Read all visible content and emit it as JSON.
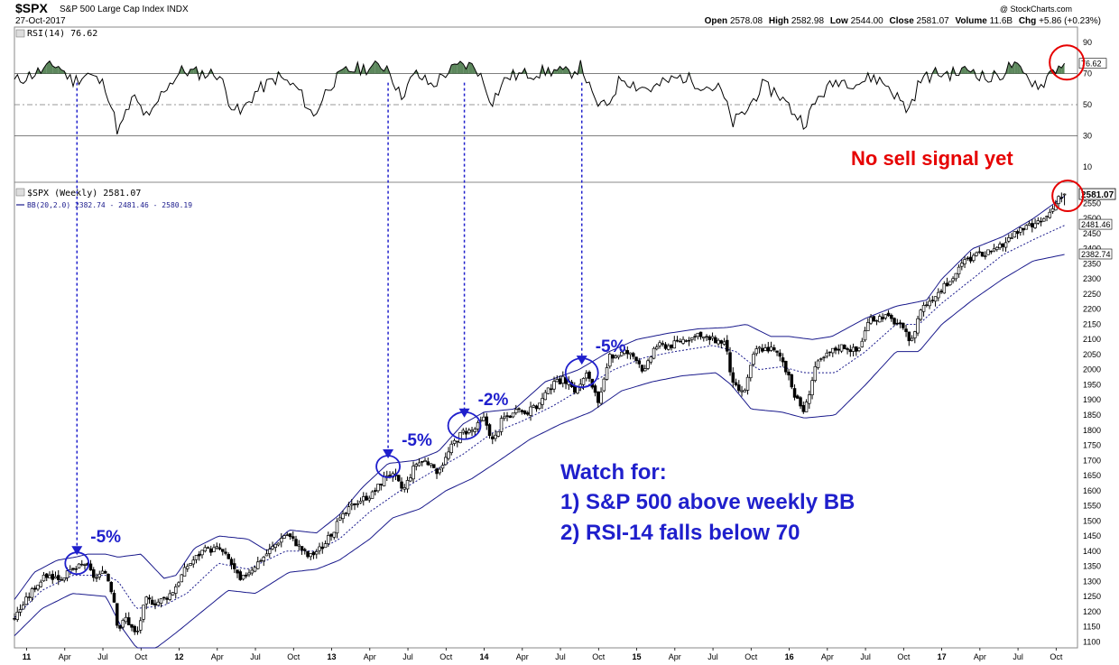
{
  "header": {
    "symbol": "$SPX",
    "name": "S&P 500 Large Cap Index INDX",
    "date": "27-Oct-2017",
    "open_label": "Open",
    "open": "2578.08",
    "high_label": "High",
    "high": "2582.98",
    "low_label": "Low",
    "low": "2544.00",
    "close_label": "Close",
    "close": "2581.07",
    "volume_label": "Volume",
    "volume": "11.6B",
    "chg_label": "Chg",
    "chg": "+5.86 (+0.23%)",
    "watermark": "@ StockCharts.com"
  },
  "rsi_panel": {
    "legend": "RSI(14) 76.62",
    "last_value_tag": "76.62",
    "ticks": [
      90,
      70,
      50,
      30,
      10
    ],
    "overbought": 70,
    "oversold": 30,
    "midline": 50,
    "ylim": [
      0,
      100
    ]
  },
  "price_panel": {
    "legend_1": "$SPX (Weekly) 2581.07",
    "legend_2": "BB(20,2.0) 2382.74 - 2481.46 - 2580.19",
    "last_value_tag": "2581.07",
    "mid_band_tag": "2481.46",
    "lower_band_tag": "2382.74",
    "ticks": [
      1100,
      1150,
      1200,
      1250,
      1300,
      1350,
      1400,
      1450,
      1500,
      1550,
      1600,
      1650,
      1700,
      1750,
      1800,
      1850,
      1900,
      1950,
      2000,
      2050,
      2100,
      2150,
      2200,
      2250,
      2300,
      2350,
      2400,
      2450,
      2500,
      2550
    ],
    "ylim": [
      1080,
      2620
    ]
  },
  "x_axis": {
    "labels": [
      {
        "t": 0.0,
        "text": "11",
        "year": true
      },
      {
        "t": 0.25,
        "text": "Apr"
      },
      {
        "t": 0.5,
        "text": "Jul"
      },
      {
        "t": 0.75,
        "text": "Oct"
      },
      {
        "t": 1.0,
        "text": "12",
        "year": true
      },
      {
        "t": 1.25,
        "text": "Apr"
      },
      {
        "t": 1.5,
        "text": "Jul"
      },
      {
        "t": 1.75,
        "text": "Oct"
      },
      {
        "t": 2.0,
        "text": "13",
        "year": true
      },
      {
        "t": 2.25,
        "text": "Apr"
      },
      {
        "t": 2.5,
        "text": "Jul"
      },
      {
        "t": 2.75,
        "text": "Oct"
      },
      {
        "t": 3.0,
        "text": "14",
        "year": true
      },
      {
        "t": 3.25,
        "text": "Apr"
      },
      {
        "t": 3.5,
        "text": "Jul"
      },
      {
        "t": 3.75,
        "text": "Oct"
      },
      {
        "t": 4.0,
        "text": "15",
        "year": true
      },
      {
        "t": 4.25,
        "text": "Apr"
      },
      {
        "t": 4.5,
        "text": "Jul"
      },
      {
        "t": 4.75,
        "text": "Oct"
      },
      {
        "t": 5.0,
        "text": "16",
        "year": true
      },
      {
        "t": 5.25,
        "text": "Apr"
      },
      {
        "t": 5.5,
        "text": "Jul"
      },
      {
        "t": 5.75,
        "text": "Oct"
      },
      {
        "t": 6.0,
        "text": "17",
        "year": true
      },
      {
        "t": 6.25,
        "text": "Apr"
      },
      {
        "t": 6.5,
        "text": "Jul"
      },
      {
        "t": 6.75,
        "text": "Oct"
      }
    ]
  },
  "chart_data": {
    "type": "line",
    "x_unit": "years since Jan 2011",
    "xlim": [
      -0.08,
      6.89
    ],
    "price_keypoints": [
      [
        -0.08,
        1180
      ],
      [
        0.05,
        1280
      ],
      [
        0.13,
        1320
      ],
      [
        0.22,
        1310
      ],
      [
        0.3,
        1335
      ],
      [
        0.38,
        1360
      ],
      [
        0.45,
        1310
      ],
      [
        0.52,
        1330
      ],
      [
        0.57,
        1250
      ],
      [
        0.6,
        1140
      ],
      [
        0.65,
        1180
      ],
      [
        0.72,
        1120
      ],
      [
        0.78,
        1240
      ],
      [
        0.85,
        1230
      ],
      [
        0.92,
        1250
      ],
      [
        0.96,
        1270
      ],
      [
        1.05,
        1350
      ],
      [
        1.15,
        1400
      ],
      [
        1.26,
        1410
      ],
      [
        1.33,
        1370
      ],
      [
        1.4,
        1300
      ],
      [
        1.45,
        1330
      ],
      [
        1.55,
        1380
      ],
      [
        1.7,
        1460
      ],
      [
        1.78,
        1420
      ],
      [
        1.85,
        1380
      ],
      [
        1.95,
        1420
      ],
      [
        2.05,
        1500
      ],
      [
        2.15,
        1560
      ],
      [
        2.27,
        1590
      ],
      [
        2.37,
        1660
      ],
      [
        2.42,
        1640
      ],
      [
        2.47,
        1600
      ],
      [
        2.55,
        1690
      ],
      [
        2.62,
        1700
      ],
      [
        2.68,
        1660
      ],
      [
        2.74,
        1700
      ],
      [
        2.8,
        1760
      ],
      [
        2.86,
        1795
      ],
      [
        2.93,
        1800
      ],
      [
        3.0,
        1840
      ],
      [
        3.06,
        1760
      ],
      [
        3.12,
        1840
      ],
      [
        3.22,
        1860
      ],
      [
        3.28,
        1860
      ],
      [
        3.35,
        1880
      ],
      [
        3.45,
        1950
      ],
      [
        3.52,
        1970
      ],
      [
        3.6,
        1930
      ],
      [
        3.68,
        1990
      ],
      [
        3.75,
        1880
      ],
      [
        3.82,
        2040
      ],
      [
        3.92,
        2060
      ],
      [
        4.0,
        2040
      ],
      [
        4.05,
        1990
      ],
      [
        4.12,
        2080
      ],
      [
        4.22,
        2080
      ],
      [
        4.3,
        2100
      ],
      [
        4.4,
        2110
      ],
      [
        4.5,
        2100
      ],
      [
        4.58,
        2090
      ],
      [
        4.63,
        1950
      ],
      [
        4.7,
        1920
      ],
      [
        4.78,
        2070
      ],
      [
        4.88,
        2070
      ],
      [
        4.95,
        2040
      ],
      [
        5.04,
        1910
      ],
      [
        5.1,
        1860
      ],
      [
        5.17,
        2010
      ],
      [
        5.27,
        2060
      ],
      [
        5.35,
        2080
      ],
      [
        5.45,
        2060
      ],
      [
        5.52,
        2160
      ],
      [
        5.62,
        2180
      ],
      [
        5.72,
        2150
      ],
      [
        5.8,
        2090
      ],
      [
        5.86,
        2200
      ],
      [
        5.96,
        2250
      ],
      [
        6.05,
        2290
      ],
      [
        6.15,
        2360
      ],
      [
        6.24,
        2380
      ],
      [
        6.35,
        2390
      ],
      [
        6.45,
        2440
      ],
      [
        6.55,
        2470
      ],
      [
        6.62,
        2480
      ],
      [
        6.68,
        2500
      ],
      [
        6.76,
        2560
      ],
      [
        6.82,
        2581
      ]
    ],
    "rsi_keypoints": [
      [
        -0.08,
        65
      ],
      [
        0.1,
        72
      ],
      [
        0.2,
        76
      ],
      [
        0.3,
        65
      ],
      [
        0.4,
        70
      ],
      [
        0.52,
        62
      ],
      [
        0.6,
        32
      ],
      [
        0.7,
        55
      ],
      [
        0.8,
        40
      ],
      [
        0.9,
        60
      ],
      [
        1.02,
        72
      ],
      [
        1.15,
        70
      ],
      [
        1.26,
        70
      ],
      [
        1.33,
        52
      ],
      [
        1.4,
        44
      ],
      [
        1.5,
        58
      ],
      [
        1.65,
        68
      ],
      [
        1.78,
        60
      ],
      [
        1.88,
        42
      ],
      [
        1.98,
        62
      ],
      [
        2.1,
        72
      ],
      [
        2.25,
        74
      ],
      [
        2.37,
        75
      ],
      [
        2.45,
        55
      ],
      [
        2.55,
        70
      ],
      [
        2.66,
        62
      ],
      [
        2.74,
        70
      ],
      [
        2.86,
        76
      ],
      [
        2.95,
        74
      ],
      [
        3.05,
        52
      ],
      [
        3.15,
        68
      ],
      [
        3.3,
        70
      ],
      [
        3.45,
        72
      ],
      [
        3.55,
        70
      ],
      [
        3.64,
        75
      ],
      [
        3.72,
        52
      ],
      [
        3.8,
        48
      ],
      [
        3.9,
        68
      ],
      [
        4.0,
        62
      ],
      [
        4.1,
        60
      ],
      [
        4.2,
        65
      ],
      [
        4.3,
        68
      ],
      [
        4.45,
        62
      ],
      [
        4.55,
        60
      ],
      [
        4.63,
        38
      ],
      [
        4.72,
        46
      ],
      [
        4.82,
        62
      ],
      [
        4.92,
        58
      ],
      [
        5.02,
        46
      ],
      [
        5.1,
        38
      ],
      [
        5.2,
        56
      ],
      [
        5.32,
        66
      ],
      [
        5.45,
        64
      ],
      [
        5.55,
        68
      ],
      [
        5.65,
        62
      ],
      [
        5.78,
        46
      ],
      [
        5.86,
        66
      ],
      [
        5.96,
        70
      ],
      [
        6.08,
        70
      ],
      [
        6.2,
        73
      ],
      [
        6.3,
        66
      ],
      [
        6.4,
        70
      ],
      [
        6.46,
        76
      ],
      [
        6.55,
        68
      ],
      [
        6.65,
        62
      ],
      [
        6.72,
        72
      ],
      [
        6.78,
        75
      ],
      [
        6.82,
        76.62
      ]
    ],
    "upper_band_keypoints": [
      [
        -0.08,
        1240
      ],
      [
        0.05,
        1330
      ],
      [
        0.2,
        1370
      ],
      [
        0.32,
        1380
      ],
      [
        0.4,
        1390
      ],
      [
        0.52,
        1390
      ],
      [
        0.6,
        1380
      ],
      [
        0.75,
        1390
      ],
      [
        0.9,
        1310
      ],
      [
        0.98,
        1320
      ],
      [
        1.1,
        1410
      ],
      [
        1.26,
        1450
      ],
      [
        1.45,
        1440
      ],
      [
        1.58,
        1400
      ],
      [
        1.72,
        1470
      ],
      [
        1.9,
        1460
      ],
      [
        2.05,
        1520
      ],
      [
        2.2,
        1610
      ],
      [
        2.37,
        1690
      ],
      [
        2.55,
        1700
      ],
      [
        2.7,
        1730
      ],
      [
        2.86,
        1820
      ],
      [
        3.0,
        1860
      ],
      [
        3.2,
        1870
      ],
      [
        3.4,
        1960
      ],
      [
        3.62,
        2000
      ],
      [
        3.82,
        2060
      ],
      [
        4.0,
        2100
      ],
      [
        4.2,
        2120
      ],
      [
        4.4,
        2135
      ],
      [
        4.6,
        2140
      ],
      [
        4.72,
        2150
      ],
      [
        4.88,
        2110
      ],
      [
        5.0,
        2110
      ],
      [
        5.15,
        2100
      ],
      [
        5.28,
        2110
      ],
      [
        5.5,
        2170
      ],
      [
        5.7,
        2210
      ],
      [
        5.9,
        2230
      ],
      [
        6.0,
        2300
      ],
      [
        6.2,
        2400
      ],
      [
        6.4,
        2440
      ],
      [
        6.6,
        2500
      ],
      [
        6.82,
        2580
      ]
    ],
    "middle_band_keypoints": [
      [
        -0.08,
        1180
      ],
      [
        0.1,
        1270
      ],
      [
        0.3,
        1320
      ],
      [
        0.52,
        1320
      ],
      [
        0.6,
        1300
      ],
      [
        0.72,
        1210
      ],
      [
        0.9,
        1220
      ],
      [
        1.05,
        1260
      ],
      [
        1.26,
        1360
      ],
      [
        1.45,
        1340
      ],
      [
        1.7,
        1400
      ],
      [
        1.9,
        1400
      ],
      [
        2.05,
        1440
      ],
      [
        2.25,
        1530
      ],
      [
        2.45,
        1600
      ],
      [
        2.65,
        1660
      ],
      [
        2.86,
        1720
      ],
      [
        3.05,
        1790
      ],
      [
        3.25,
        1830
      ],
      [
        3.45,
        1880
      ],
      [
        3.65,
        1940
      ],
      [
        3.85,
        2000
      ],
      [
        4.05,
        2040
      ],
      [
        4.25,
        2060
      ],
      [
        4.5,
        2080
      ],
      [
        4.65,
        2060
      ],
      [
        4.8,
        2000
      ],
      [
        4.95,
        2010
      ],
      [
        5.1,
        1990
      ],
      [
        5.3,
        1990
      ],
      [
        5.5,
        2060
      ],
      [
        5.7,
        2150
      ],
      [
        5.85,
        2150
      ],
      [
        6.0,
        2220
      ],
      [
        6.2,
        2300
      ],
      [
        6.4,
        2380
      ],
      [
        6.6,
        2430
      ],
      [
        6.82,
        2481
      ]
    ],
    "lower_band_keypoints": [
      [
        -0.08,
        1120
      ],
      [
        0.1,
        1210
      ],
      [
        0.3,
        1260
      ],
      [
        0.52,
        1250
      ],
      [
        0.62,
        1150
      ],
      [
        0.72,
        1080
      ],
      [
        0.85,
        1080
      ],
      [
        0.98,
        1130
      ],
      [
        1.15,
        1200
      ],
      [
        1.32,
        1270
      ],
      [
        1.5,
        1260
      ],
      [
        1.72,
        1330
      ],
      [
        1.9,
        1340
      ],
      [
        2.05,
        1370
      ],
      [
        2.25,
        1440
      ],
      [
        2.4,
        1510
      ],
      [
        2.58,
        1540
      ],
      [
        2.75,
        1600
      ],
      [
        2.92,
        1640
      ],
      [
        3.1,
        1700
      ],
      [
        3.3,
        1770
      ],
      [
        3.5,
        1820
      ],
      [
        3.7,
        1860
      ],
      [
        3.9,
        1930
      ],
      [
        4.1,
        1960
      ],
      [
        4.3,
        1980
      ],
      [
        4.52,
        1990
      ],
      [
        4.62,
        1950
      ],
      [
        4.75,
        1870
      ],
      [
        4.95,
        1860
      ],
      [
        5.1,
        1840
      ],
      [
        5.3,
        1850
      ],
      [
        5.5,
        1950
      ],
      [
        5.7,
        2060
      ],
      [
        5.85,
        2060
      ],
      [
        6.0,
        2150
      ],
      [
        6.2,
        2230
      ],
      [
        6.4,
        2300
      ],
      [
        6.6,
        2360
      ],
      [
        6.82,
        2382.74
      ]
    ],
    "annotations": [
      {
        "label": "-5%",
        "t": 0.33,
        "price": 1345,
        "rsi": 71,
        "circle": true
      },
      {
        "label": "-5%",
        "t": 2.37,
        "price": 1665,
        "rsi": 73,
        "circle": true
      },
      {
        "label": "-2%",
        "t": 2.87,
        "price": 1800,
        "rsi": 76,
        "circle": true
      },
      {
        "label": "-5%",
        "t": 3.64,
        "price": 1975,
        "rsi": 75,
        "circle": true
      }
    ],
    "signal_marks": [
      {
        "panel": "rsi",
        "t": 6.82,
        "value": 76.62
      },
      {
        "panel": "price",
        "t": 6.82,
        "value": 2581.07
      }
    ],
    "notes": {
      "watch_title": "Watch for:",
      "watch_1": "1) S&P 500 above weekly BB",
      "watch_2": "2) RSI-14 falls below 70",
      "sell_signal": "No sell signal yet"
    },
    "colors": {
      "price": "#000000",
      "bands": "#1a1a8c",
      "rsi": "#000000",
      "rsi_fill": "#4a7a4a",
      "annotation": "#1f1fcc",
      "signal": "#e60000"
    }
  }
}
